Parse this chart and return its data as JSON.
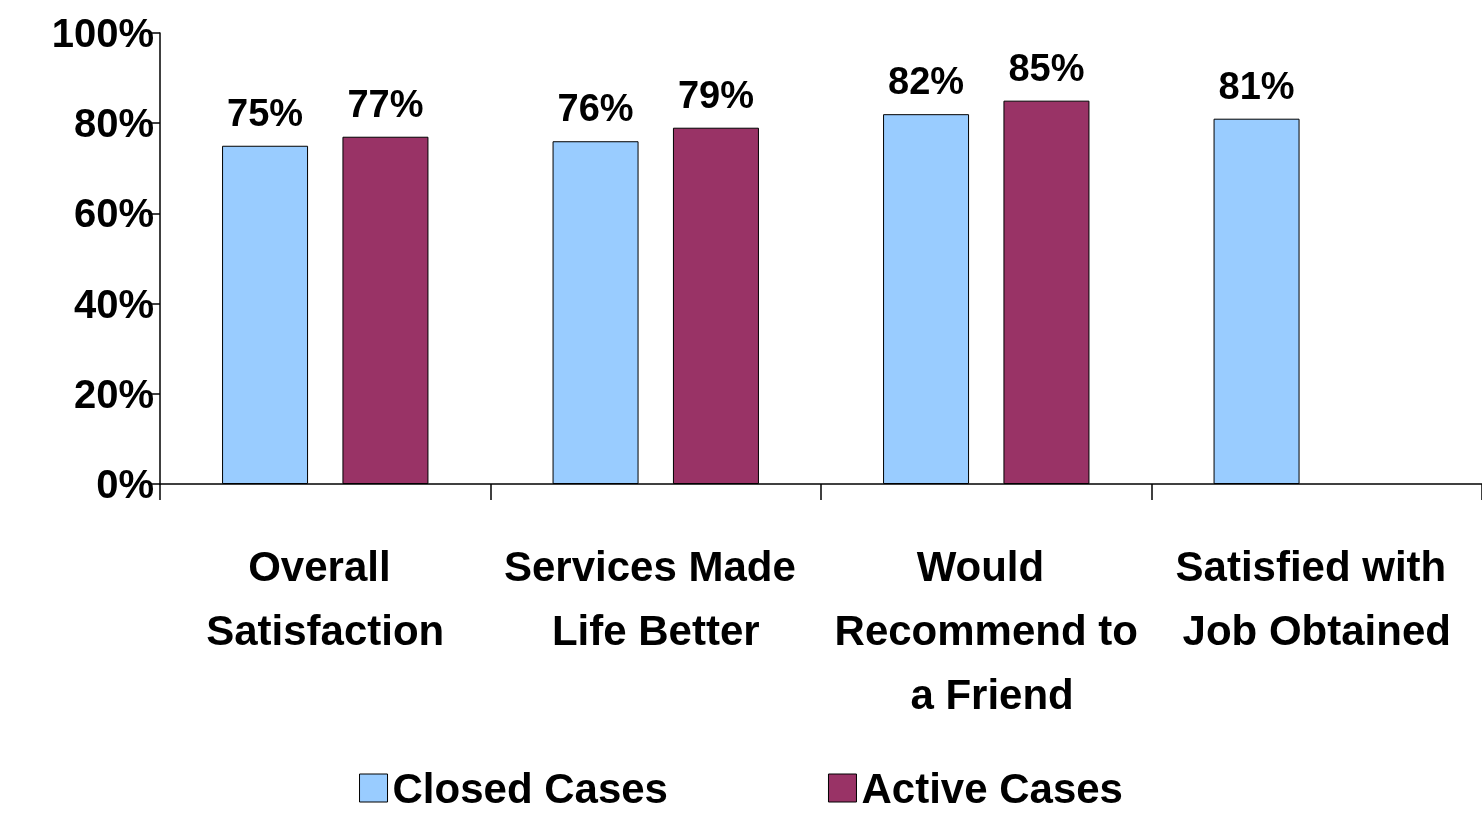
{
  "chart_data": {
    "type": "bar",
    "categories": [
      "Overall Satisfaction",
      "Services Made Life Better",
      "Would Recommend to a Friend",
      "Satisfied with Job Obtained"
    ],
    "series": [
      {
        "name": "Closed Cases",
        "color": "#99ccff",
        "values": [
          75,
          76,
          82,
          81
        ],
        "value_labels": [
          "75%",
          "76%",
          "82%",
          "81%"
        ]
      },
      {
        "name": "Active Cases",
        "color": "#993366",
        "values": [
          77,
          79,
          85,
          null
        ],
        "value_labels": [
          "77%",
          "79%",
          "85%",
          null
        ]
      }
    ],
    "ylim": [
      0,
      100
    ],
    "yticks": [
      {
        "value": 0,
        "label": "0%"
      },
      {
        "value": 20,
        "label": "20%"
      },
      {
        "value": 40,
        "label": "40%"
      },
      {
        "value": 60,
        "label": "60%"
      },
      {
        "value": 80,
        "label": "80%"
      },
      {
        "value": 100,
        "label": "100%"
      }
    ],
    "grid": false,
    "legend": "bottom"
  }
}
